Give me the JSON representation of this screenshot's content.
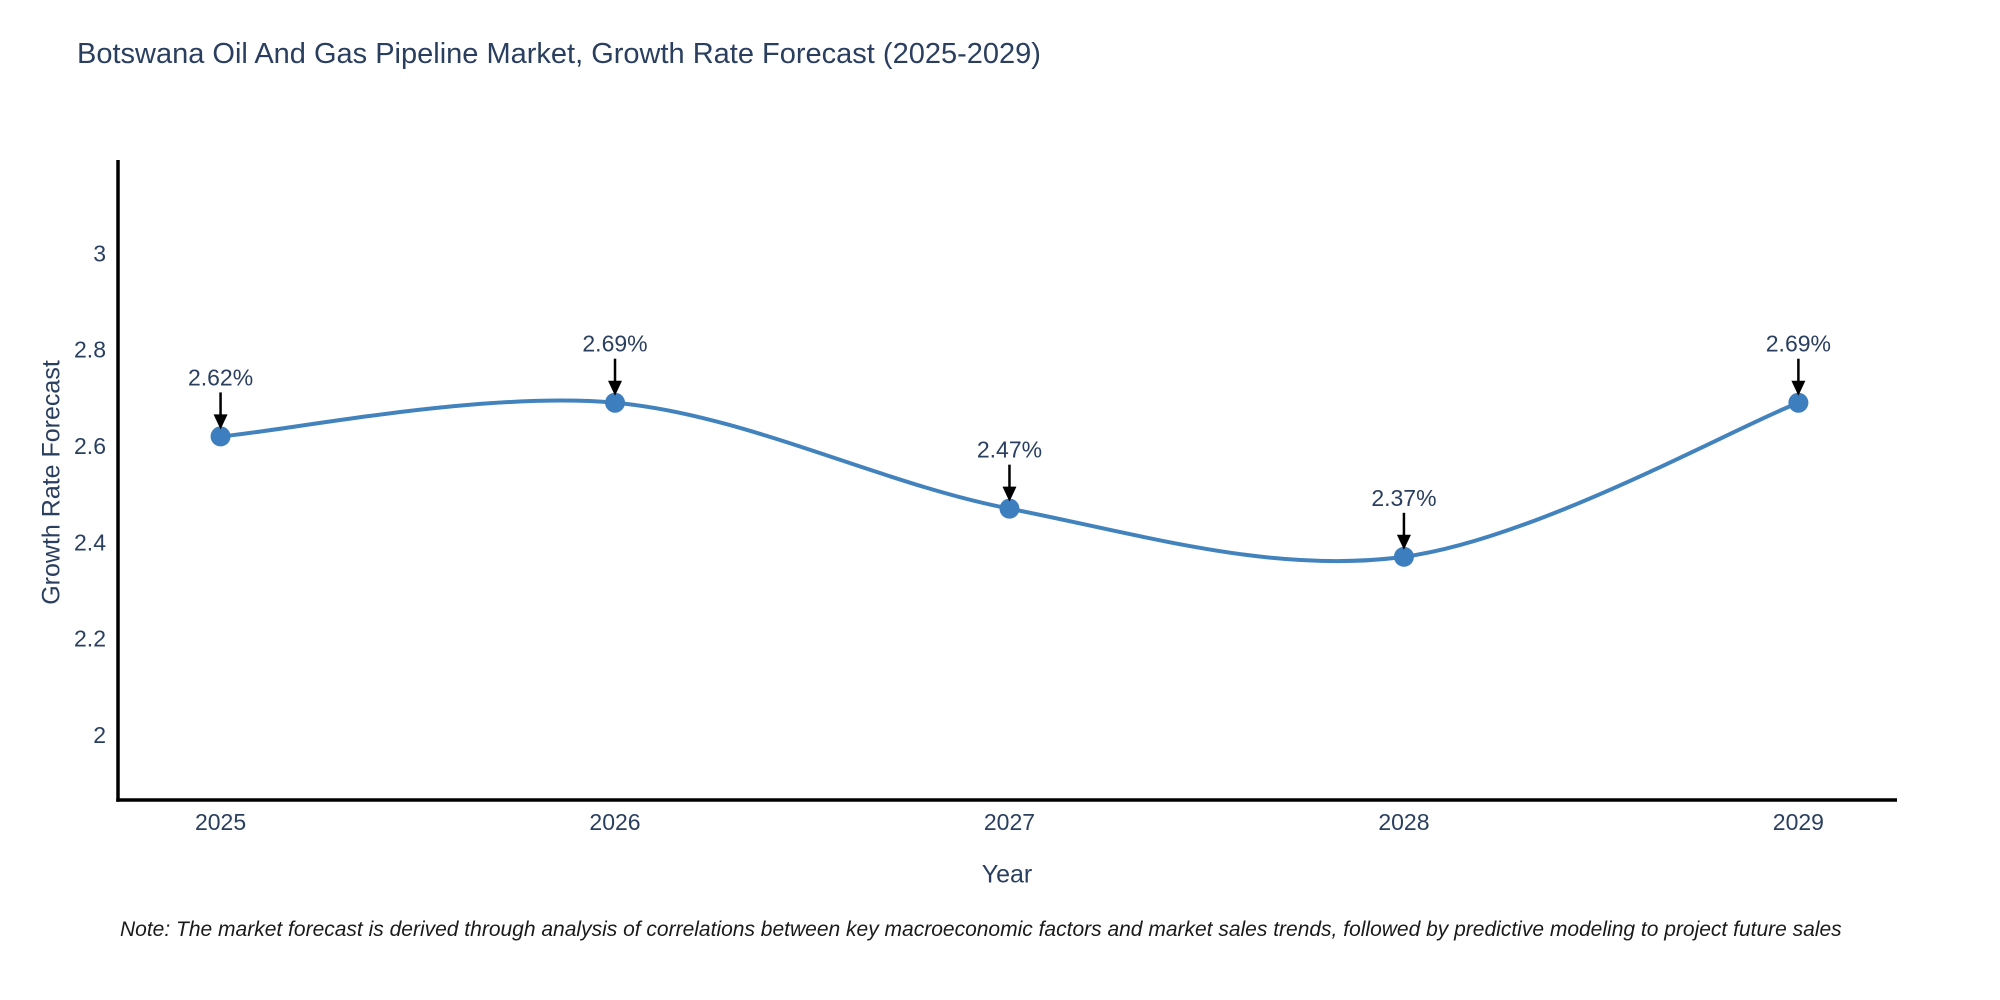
{
  "chart_data": {
    "type": "line",
    "title": "Botswana Oil And Gas Pipeline Market, Growth Rate Forecast (2025-2029)",
    "xlabel": "Year",
    "ylabel": "Growth Rate Forecast",
    "note": "Note: The market forecast is derived through analysis of correlations between key macroeconomic factors and market sales trends, followed by predictive modeling to project future sales",
    "x": [
      2025,
      2026,
      2027,
      2028,
      2029
    ],
    "y": [
      2.62,
      2.69,
      2.47,
      2.37,
      2.69
    ],
    "point_labels": [
      "2.62%",
      "2.69%",
      "2.47%",
      "2.37%",
      "2.69%"
    ],
    "x_tick_labels": [
      "2025",
      "2026",
      "2027",
      "2028",
      "2029"
    ],
    "y_ticks": [
      2,
      2.2,
      2.4,
      2.6,
      2.8,
      3
    ],
    "y_tick_labels": [
      "2",
      "2.2",
      "2.4",
      "2.6",
      "2.8",
      "3"
    ],
    "xlim": [
      2024.74,
      2029.25
    ],
    "ylim": [
      1.865,
      3.194
    ],
    "grid": false,
    "legend": "none",
    "line_shape": "spline",
    "colors": {
      "line": "#4383bd",
      "marker": "#3d7ebf",
      "axis": "#000000",
      "text": "#2a3f5f",
      "annotation_text": "#2a3f5f",
      "annotation_arrow": "#000000",
      "note_text": "#1a1a1a"
    }
  }
}
